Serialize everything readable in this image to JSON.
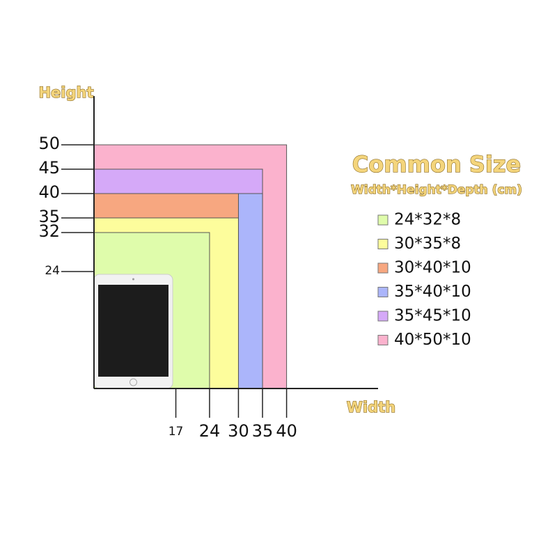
{
  "chart_data": {
    "type": "size-rect",
    "title": "Common Size",
    "subtitle": "Width*Height*Depth (cm)",
    "x_label": "Width",
    "y_label": "Height",
    "xlim": [
      0,
      59
    ],
    "ylim": [
      0,
      60
    ],
    "xticks": [
      17,
      24,
      30,
      35,
      40
    ],
    "yticks": [
      24,
      32,
      35,
      40,
      45,
      50
    ],
    "series": [
      {
        "name": "24*32*8",
        "color": "#dffcab",
        "width": 24,
        "height": 32
      },
      {
        "name": "30*35*8",
        "color": "#fdfd9c",
        "width": 30,
        "height": 35
      },
      {
        "name": "30*40*10",
        "color": "#f7a780",
        "width": 30,
        "height": 40
      },
      {
        "name": "35*40*10",
        "color": "#abb5fb",
        "width": 35,
        "height": 40
      },
      {
        "name": "35*45*10",
        "color": "#d5a9f8",
        "width": 35,
        "height": 45
      },
      {
        "name": "40*50*10",
        "color": "#fbb2cd",
        "width": 40,
        "height": 50
      }
    ]
  }
}
